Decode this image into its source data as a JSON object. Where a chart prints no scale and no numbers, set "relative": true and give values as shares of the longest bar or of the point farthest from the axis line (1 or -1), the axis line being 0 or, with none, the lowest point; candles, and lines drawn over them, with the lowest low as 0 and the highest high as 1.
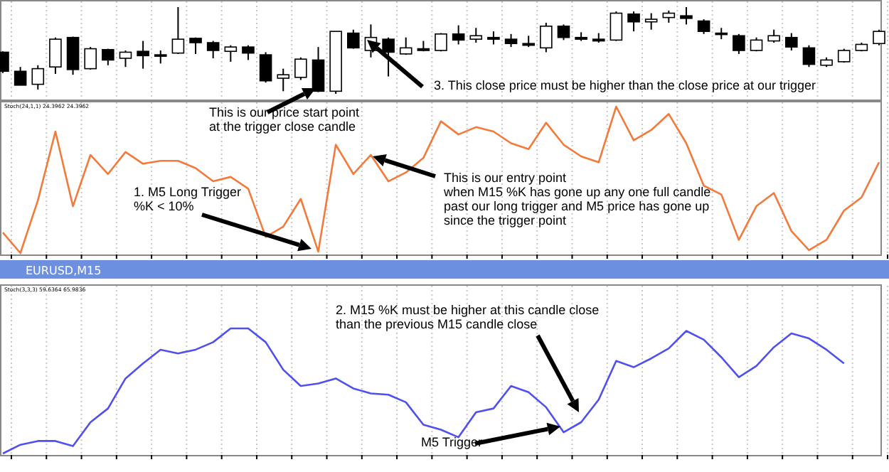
{
  "chart_data": [
    {
      "type": "candlestick",
      "relative": true,
      "grid": "x",
      "categories": [
        null,
        null,
        null,
        null,
        null,
        null,
        null,
        null,
        null,
        null,
        null,
        null,
        null,
        null,
        null,
        null,
        null,
        null,
        null,
        null,
        null,
        null,
        null,
        null,
        null,
        null,
        null,
        null,
        null,
        null,
        null,
        null,
        null,
        null,
        null,
        null,
        null,
        null,
        null,
        null,
        null,
        null,
        null,
        null,
        null,
        null,
        null,
        null,
        null,
        null,
        null
      ],
      "ohlc": [
        [
          0.48,
          0.49,
          0.24,
          0.26
        ],
        [
          0.26,
          0.31,
          0.1,
          0.1
        ],
        [
          0.11,
          0.33,
          0.05,
          0.29
        ],
        [
          0.31,
          0.65,
          0.23,
          0.63
        ],
        [
          0.65,
          0.66,
          0.22,
          0.28
        ],
        [
          0.29,
          0.54,
          0.28,
          0.52
        ],
        [
          0.51,
          0.52,
          0.33,
          0.39
        ],
        [
          0.41,
          0.5,
          0.31,
          0.48
        ],
        [
          0.49,
          0.61,
          0.29,
          0.44
        ],
        [
          0.45,
          0.5,
          0.35,
          0.44
        ],
        [
          0.47,
          1.0,
          0.46,
          0.63
        ],
        [
          0.64,
          0.65,
          0.46,
          0.59
        ],
        [
          0.59,
          0.61,
          0.41,
          0.5
        ],
        [
          0.49,
          0.56,
          0.37,
          0.54
        ],
        [
          0.54,
          0.56,
          0.39,
          0.47
        ],
        [
          0.45,
          0.48,
          0.13,
          0.15
        ],
        [
          0.18,
          0.29,
          0.03,
          0.22
        ],
        [
          0.19,
          0.42,
          0.16,
          0.4
        ],
        [
          0.39,
          0.54,
          0.02,
          0.03
        ],
        [
          0.03,
          0.72,
          0,
          0.72
        ],
        [
          0.7,
          0.74,
          0.52,
          0.53
        ],
        [
          0.5,
          0.8,
          0.42,
          0.65
        ],
        [
          0.63,
          0.65,
          0.2,
          0.48
        ],
        [
          0.46,
          0.65,
          0.45,
          0.53
        ],
        [
          0.52,
          0.61,
          0.49,
          0.5
        ],
        [
          0.5,
          0.7,
          0.49,
          0.69
        ],
        [
          0.69,
          0.79,
          0.57,
          0.62
        ],
        [
          0.63,
          0.76,
          0.59,
          0.67
        ],
        [
          0.65,
          0.72,
          0.57,
          0.63
        ],
        [
          0.63,
          0.69,
          0.54,
          0.58
        ],
        [
          0.58,
          0.67,
          0.54,
          0.56
        ],
        [
          0.53,
          0.82,
          0.48,
          0.78
        ],
        [
          0.78,
          0.8,
          0.62,
          0.65
        ],
        [
          0.65,
          0.71,
          0.61,
          0.63
        ],
        [
          0.63,
          0.7,
          0.59,
          0.61
        ],
        [
          0.62,
          0.95,
          0.61,
          0.93
        ],
        [
          0.92,
          0.95,
          0.72,
          0.83
        ],
        [
          0.83,
          0.93,
          0.74,
          0.86
        ],
        [
          0.88,
          0.96,
          0.82,
          0.93
        ],
        [
          0.9,
          1.0,
          0.8,
          0.87
        ],
        [
          0.84,
          0.86,
          0.69,
          0.72
        ],
        [
          0.7,
          0.76,
          0.63,
          0.69
        ],
        [
          0.67,
          0.69,
          0.46,
          0.5
        ],
        [
          0.5,
          0.65,
          0.49,
          0.62
        ],
        [
          0.61,
          0.74,
          0.59,
          0.67
        ],
        [
          0.65,
          0.7,
          0.5,
          0.54
        ],
        [
          0.53,
          0.56,
          0.31,
          0.34
        ],
        [
          0.33,
          0.42,
          0.31,
          0.39
        ],
        [
          0.37,
          0.52,
          0.36,
          0.5
        ],
        [
          0.5,
          0.59,
          0.49,
          0.57
        ],
        [
          0.58,
          0.74,
          0.56,
          0.72
        ]
      ],
      "annotations": [
        "3.  This close price must be higher than the close price at our trigger"
      ]
    },
    {
      "type": "line",
      "relative": true,
      "grid": "x",
      "subtitle": "Stoch(24,1,1) 24.3962 24.3962",
      "color": "#f47a3c",
      "categories": [
        null,
        null,
        null,
        null,
        null,
        null,
        null,
        null,
        null,
        null,
        null,
        null,
        null,
        null,
        null,
        null,
        null,
        null,
        null,
        null,
        null,
        null,
        null,
        null,
        null,
        null,
        null,
        null,
        null,
        null,
        null,
        null,
        null,
        null,
        null,
        null,
        null,
        null,
        null,
        null,
        null,
        null,
        null,
        null,
        null,
        null,
        null,
        null,
        null,
        null,
        null
      ],
      "values": [
        0.14,
        0,
        0.36,
        0.83,
        0.32,
        0.67,
        0.54,
        0.69,
        0.61,
        0.63,
        0.63,
        0.58,
        0.49,
        0.52,
        0.44,
        0.11,
        0.18,
        0.37,
        0.01,
        0.74,
        0.54,
        0.67,
        0.49,
        0.55,
        0.65,
        0.9,
        0.81,
        0.86,
        0.83,
        0.75,
        0.71,
        0.89,
        0.74,
        0.66,
        0.62,
        1,
        0.77,
        0.84,
        0.95,
        0.75,
        0.46,
        0.4,
        0.09,
        0.32,
        0.41,
        0.15,
        0.02,
        0.09,
        0.29,
        0.38,
        0.62
      ],
      "annotations": [
        "This is our price start point\nat the trigger close candle",
        "1.  M5 Long Trigger\n%K < 10%",
        "This is our entry point\nwhen M15 %K has gone up any one full candle\npast our long trigger and M5 price has gone up\nsince the trigger point"
      ]
    },
    {
      "type": "line",
      "relative": true,
      "grid": "x",
      "title": "EURUSD,M15",
      "subtitle": "Stoch(3,3,3) 59.6364 65.9836",
      "color": "#5050f0",
      "categories": [
        null,
        null,
        null,
        null,
        null,
        null,
        null,
        null,
        null,
        null,
        null,
        null,
        null,
        null,
        null,
        null,
        null,
        null,
        null,
        null,
        null,
        null,
        null,
        null,
        null,
        null,
        null,
        null,
        null,
        null,
        null,
        null,
        null,
        null,
        null,
        null,
        null,
        null,
        null,
        null,
        null,
        null,
        null,
        null,
        null,
        null,
        null,
        null,
        null,
        null,
        null
      ],
      "values": [
        0,
        0.07,
        0.1,
        0.1,
        0.06,
        0.25,
        0.36,
        0.6,
        0.72,
        0.83,
        0.8,
        0.83,
        0.89,
        1,
        1,
        0.89,
        0.67,
        0.54,
        0.56,
        0.6,
        0.52,
        0.48,
        0.47,
        0.41,
        0.23,
        0.19,
        0.13,
        0.33,
        0.36,
        0.54,
        0.49,
        0.37,
        0.17,
        0.25,
        0.43,
        0.74,
        0.69,
        0.76,
        0.84,
        0.98,
        0.91,
        0.77,
        0.61,
        0.7,
        0.85,
        0.96,
        0.92,
        0.83,
        0.72,
        null,
        null
      ],
      "annotations": [
        "2.  M15 %K must be higher at this candle close\nthan the previous M15 candle close",
        "M5 Trigger"
      ]
    }
  ]
}
